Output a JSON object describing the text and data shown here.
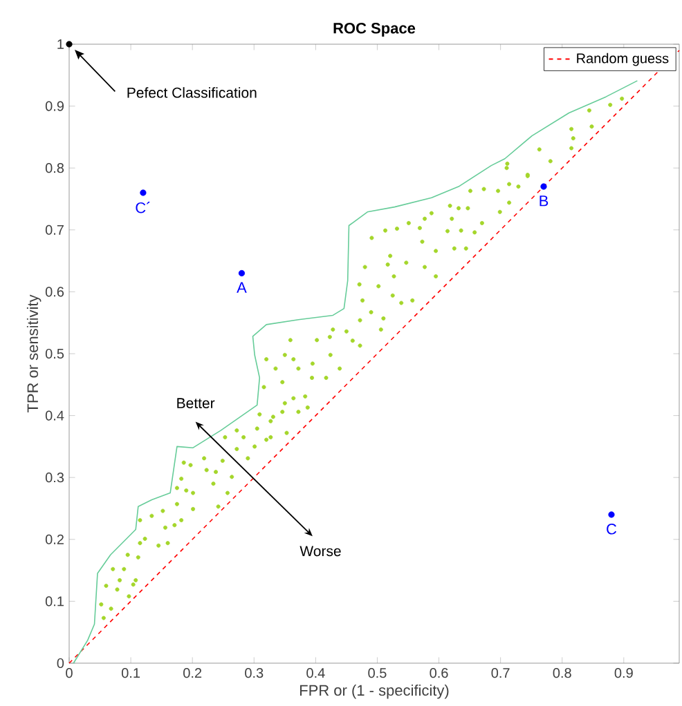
{
  "chart_data": {
    "type": "scatter",
    "title": "ROC Space",
    "xlabel": "FPR or (1 - specificity)",
    "ylabel": "TPR or sensitivity",
    "xlim": [
      0,
      0.99
    ],
    "ylim": [
      0,
      1
    ],
    "xticks": [
      0,
      0.1,
      0.2,
      0.3,
      0.4,
      0.5,
      0.6,
      0.7,
      0.8,
      0.9
    ],
    "yticks": [
      0,
      0.1,
      0.2,
      0.3,
      0.4,
      0.5,
      0.6,
      0.7,
      0.8,
      0.9,
      1
    ],
    "grid": false,
    "legend": "top right",
    "series": [
      {
        "name": "Random guess",
        "type": "line",
        "color": "#ff0000",
        "line_style": "dashed",
        "marker": "none",
        "x": [
          0,
          0.99
        ],
        "values": [
          0,
          0.99
        ]
      },
      {
        "type": "line",
        "color": "#66cc99",
        "line_style": "solid",
        "marker": "none",
        "x": [
          0.007,
          0.03,
          0.041,
          0.046,
          0.067,
          0.108,
          0.112,
          0.134,
          0.164,
          0.175,
          0.201,
          0.246,
          0.305,
          0.309,
          0.301,
          0.298,
          0.32,
          0.372,
          0.428,
          0.446,
          0.452,
          0.454,
          0.484,
          0.528,
          0.588,
          0.632,
          0.685,
          0.707,
          0.751,
          0.811,
          0.871,
          0.922
        ],
        "values": [
          0,
          0.037,
          0.063,
          0.145,
          0.175,
          0.216,
          0.253,
          0.264,
          0.275,
          0.35,
          0.348,
          0.376,
          0.417,
          0.461,
          0.498,
          0.528,
          0.547,
          0.555,
          0.562,
          0.573,
          0.618,
          0.707,
          0.729,
          0.737,
          0.752,
          0.77,
          0.804,
          0.815,
          0.852,
          0.889,
          0.915,
          0.941
        ]
      },
      {
        "type": "scatter",
        "color": "#a4d62b",
        "marker": "circle",
        "x": [
          0.056,
          0.052,
          0.068,
          0.06,
          0.078,
          0.071,
          0.089,
          0.097,
          0.082,
          0.108,
          0.104,
          0.095,
          0.115,
          0.123,
          0.112,
          0.115,
          0.134,
          0.145,
          0.156,
          0.16,
          0.152,
          0.175,
          0.171,
          0.182,
          0.175,
          0.19,
          0.201,
          0.201,
          0.182,
          0.197,
          0.186,
          0.219,
          0.223,
          0.234,
          0.238,
          0.242,
          0.257,
          0.264,
          0.249,
          0.253,
          0.272,
          0.272,
          0.283,
          0.29,
          0.301,
          0.305,
          0.32,
          0.327,
          0.327,
          0.309,
          0.331,
          0.346,
          0.353,
          0.35,
          0.364,
          0.372,
          0.387,
          0.316,
          0.346,
          0.335,
          0.364,
          0.372,
          0.394,
          0.417,
          0.439,
          0.424,
          0.32,
          0.35,
          0.383,
          0.395,
          0.359,
          0.402,
          0.423,
          0.428,
          0.45,
          0.46,
          0.472,
          0.472,
          0.49,
          0.51,
          0.506,
          0.476,
          0.471,
          0.502,
          0.525,
          0.539,
          0.557,
          0.527,
          0.517,
          0.521,
          0.48,
          0.491,
          0.513,
          0.532,
          0.551,
          0.547,
          0.569,
          0.573,
          0.577,
          0.595,
          0.595,
          0.577,
          0.588,
          0.618,
          0.632,
          0.647,
          0.621,
          0.636,
          0.614,
          0.658,
          0.67,
          0.644,
          0.625,
          0.699,
          0.714,
          0.651,
          0.673,
          0.696,
          0.714,
          0.729,
          0.744,
          0.71,
          0.711,
          0.744,
          0.763,
          0.781,
          0.815,
          0.818,
          0.815,
          0.844,
          0.848,
          0.878,
          0.897
        ],
        "values": [
          0.073,
          0.095,
          0.088,
          0.125,
          0.119,
          0.152,
          0.152,
          0.108,
          0.134,
          0.134,
          0.127,
          0.175,
          0.194,
          0.201,
          0.171,
          0.231,
          0.238,
          0.19,
          0.219,
          0.194,
          0.246,
          0.257,
          0.223,
          0.231,
          0.283,
          0.279,
          0.249,
          0.275,
          0.298,
          0.32,
          0.324,
          0.331,
          0.312,
          0.29,
          0.309,
          0.253,
          0.275,
          0.301,
          0.327,
          0.365,
          0.376,
          0.346,
          0.365,
          0.331,
          0.35,
          0.379,
          0.361,
          0.365,
          0.391,
          0.402,
          0.398,
          0.406,
          0.372,
          0.42,
          0.428,
          0.406,
          0.413,
          0.446,
          0.454,
          0.476,
          0.491,
          0.476,
          0.461,
          0.461,
          0.476,
          0.498,
          0.491,
          0.498,
          0.431,
          0.484,
          0.522,
          0.522,
          0.527,
          0.539,
          0.536,
          0.521,
          0.513,
          0.554,
          0.567,
          0.557,
          0.539,
          0.586,
          0.612,
          0.609,
          0.594,
          0.582,
          0.586,
          0.625,
          0.644,
          0.658,
          0.64,
          0.687,
          0.699,
          0.702,
          0.711,
          0.647,
          0.703,
          0.681,
          0.64,
          0.625,
          0.666,
          0.718,
          0.727,
          0.739,
          0.735,
          0.735,
          0.718,
          0.699,
          0.698,
          0.696,
          0.711,
          0.67,
          0.67,
          0.729,
          0.744,
          0.763,
          0.766,
          0.763,
          0.774,
          0.77,
          0.787,
          0.8,
          0.807,
          0.789,
          0.83,
          0.811,
          0.863,
          0.848,
          0.832,
          0.893,
          0.867,
          0.902,
          0.912
        ]
      },
      {
        "type": "scatter",
        "color": "#0000ff",
        "marker": "circle",
        "x": [
          0.28,
          0.77,
          0.88,
          0.12
        ],
        "values": [
          0.63,
          0.77,
          0.24,
          0.76
        ]
      },
      {
        "type": "scatter",
        "color": "#000000",
        "marker": "circle",
        "x": [
          0
        ],
        "values": [
          1
        ]
      }
    ],
    "annotations": [
      "Pefect Classification",
      "Better",
      "Worse",
      {
        "text": "A",
        "x": 0.28,
        "y": 0.63
      },
      {
        "text": "B",
        "x": 0.77,
        "y": 0.77
      },
      {
        "text": "C",
        "x": 0.88,
        "y": 0.24
      },
      {
        "text": "C´",
        "x": 0.12,
        "y": 0.76
      }
    ]
  }
}
